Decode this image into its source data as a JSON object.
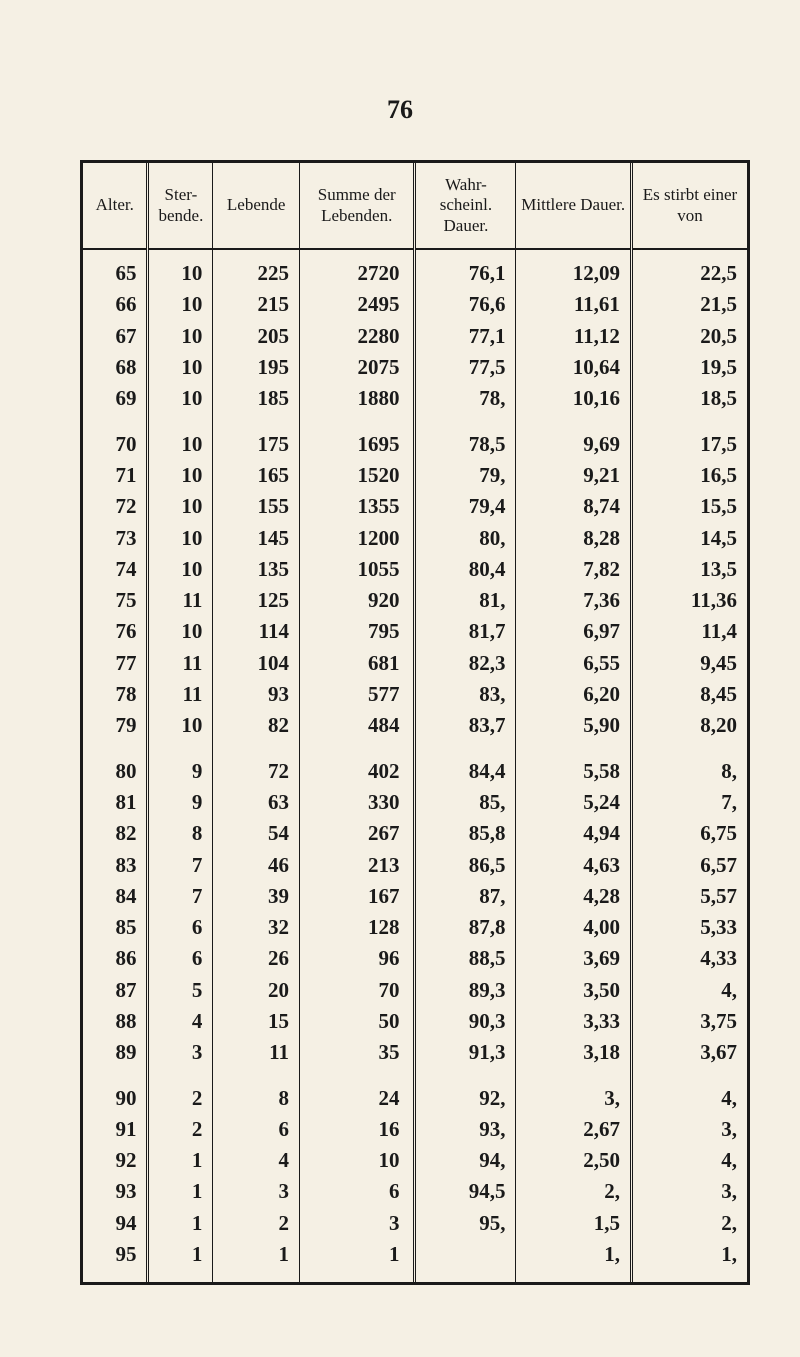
{
  "page_number": "76",
  "headers": {
    "alter": "Alter.",
    "ster": "Ster-\nbende.",
    "leb": "Lebende",
    "summe": "Summe\nder\nLebenden.",
    "wahr": "Wahr-\nscheinl.\nDauer.",
    "mitt": "Mittlere\nDauer.",
    "es": "Es stirbt\neiner von"
  },
  "groups": [
    [
      [
        "65",
        "10",
        "225",
        "2720",
        "76,1",
        "12,09",
        "22,5"
      ],
      [
        "66",
        "10",
        "215",
        "2495",
        "76,6",
        "11,61",
        "21,5"
      ],
      [
        "67",
        "10",
        "205",
        "2280",
        "77,1",
        "11,12",
        "20,5"
      ],
      [
        "68",
        "10",
        "195",
        "2075",
        "77,5",
        "10,64",
        "19,5"
      ],
      [
        "69",
        "10",
        "185",
        "1880",
        "78,",
        "10,16",
        "18,5"
      ]
    ],
    [
      [
        "70",
        "10",
        "175",
        "1695",
        "78,5",
        "9,69",
        "17,5"
      ],
      [
        "71",
        "10",
        "165",
        "1520",
        "79,",
        "9,21",
        "16,5"
      ],
      [
        "72",
        "10",
        "155",
        "1355",
        "79,4",
        "8,74",
        "15,5"
      ],
      [
        "73",
        "10",
        "145",
        "1200",
        "80,",
        "8,28",
        "14,5"
      ],
      [
        "74",
        "10",
        "135",
        "1055",
        "80,4",
        "7,82",
        "13,5"
      ],
      [
        "75",
        "11",
        "125",
        "920",
        "81,",
        "7,36",
        "11,36"
      ],
      [
        "76",
        "10",
        "114",
        "795",
        "81,7",
        "6,97",
        "11,4"
      ],
      [
        "77",
        "11",
        "104",
        "681",
        "82,3",
        "6,55",
        "9,45"
      ],
      [
        "78",
        "11",
        "93",
        "577",
        "83,",
        "6,20",
        "8,45"
      ],
      [
        "79",
        "10",
        "82",
        "484",
        "83,7",
        "5,90",
        "8,20"
      ]
    ],
    [
      [
        "80",
        "9",
        "72",
        "402",
        "84,4",
        "5,58",
        "8,"
      ],
      [
        "81",
        "9",
        "63",
        "330",
        "85,",
        "5,24",
        "7,"
      ],
      [
        "82",
        "8",
        "54",
        "267",
        "85,8",
        "4,94",
        "6,75"
      ],
      [
        "83",
        "7",
        "46",
        "213",
        "86,5",
        "4,63",
        "6,57"
      ],
      [
        "84",
        "7",
        "39",
        "167",
        "87,",
        "4,28",
        "5,57"
      ],
      [
        "85",
        "6",
        "32",
        "128",
        "87,8",
        "4,00",
        "5,33"
      ],
      [
        "86",
        "6",
        "26",
        "96",
        "88,5",
        "3,69",
        "4,33"
      ],
      [
        "87",
        "5",
        "20",
        "70",
        "89,3",
        "3,50",
        "4,"
      ],
      [
        "88",
        "4",
        "15",
        "50",
        "90,3",
        "3,33",
        "3,75"
      ],
      [
        "89",
        "3",
        "11",
        "35",
        "91,3",
        "3,18",
        "3,67"
      ]
    ],
    [
      [
        "90",
        "2",
        "8",
        "24",
        "92,",
        "3,",
        "4,"
      ],
      [
        "91",
        "2",
        "6",
        "16",
        "93,",
        "2,67",
        "3,"
      ],
      [
        "92",
        "1",
        "4",
        "10",
        "94,",
        "2,50",
        "4,"
      ],
      [
        "93",
        "1",
        "3",
        "6",
        "94,5",
        "2,",
        "3,"
      ],
      [
        "94",
        "1",
        "2",
        "3",
        "95,",
        "1,5",
        "2,"
      ],
      [
        "95",
        "1",
        "1",
        "1",
        "",
        "1,",
        "1,"
      ]
    ]
  ]
}
